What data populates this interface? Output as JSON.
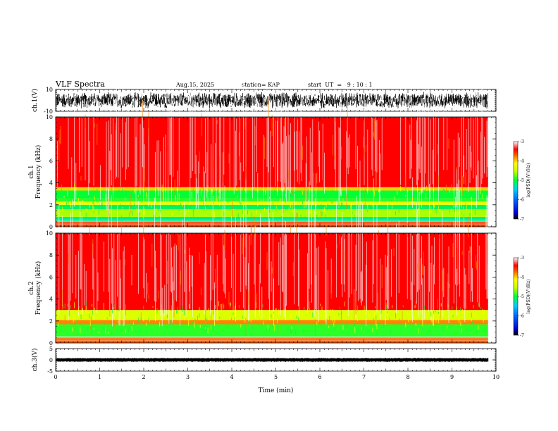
{
  "header": {
    "title": "VLF Spectra",
    "date": "Aug.15, 2025",
    "station": "station= KAP",
    "start_ut": "start  UT  =   9 : 10 : 1"
  },
  "chart_data": [
    {
      "type": "line",
      "name": "ch1-waveform",
      "ylabel": "ch.1(V)",
      "ylim": [
        -10,
        10
      ],
      "yticks": [
        {
          "v": 10,
          "label": "10"
        },
        {
          "v": -10,
          "label": "-10"
        }
      ],
      "xlim": [
        0,
        10
      ],
      "data_extent": [
        0,
        9.82
      ],
      "description": "dense noisy waveform, amplitude roughly between -8 and +8 V"
    },
    {
      "type": "heatmap",
      "name": "ch1-spectrogram",
      "ylabel_line1": "ch.1",
      "ylabel_line2": "Frequency (kHz)",
      "ylim": [
        0,
        10
      ],
      "yticks": [
        {
          "v": 0,
          "label": "0"
        },
        {
          "v": 2,
          "label": "2"
        },
        {
          "v": 4,
          "label": "4"
        },
        {
          "v": 6,
          "label": "6"
        },
        {
          "v": 8,
          "label": "8"
        },
        {
          "v": 10,
          "label": "10"
        }
      ],
      "xlim": [
        0,
        10
      ],
      "data_extent": [
        0,
        9.82
      ],
      "color_range": [
        -7,
        -3
      ],
      "bands": [
        {
          "from": 0.0,
          "to": 0.5,
          "level": -3.6
        },
        {
          "from": 0.5,
          "to": 0.9,
          "level": -5.2
        },
        {
          "from": 0.9,
          "to": 1.6,
          "level": -4.6
        },
        {
          "from": 1.6,
          "to": 2.0,
          "level": -5.1
        },
        {
          "from": 2.0,
          "to": 2.3,
          "level": -4.3
        },
        {
          "from": 2.3,
          "to": 2.6,
          "level": -4.9
        },
        {
          "from": 2.6,
          "to": 3.3,
          "level": -5.0
        },
        {
          "from": 3.3,
          "to": 3.6,
          "level": -4.0
        },
        {
          "from": 3.6,
          "to": 10.0,
          "level": -3.4
        }
      ],
      "colorbar": {
        "label": "log(PSD)(V²/Hz)",
        "ticks": [
          {
            "v": -3,
            "label": "-3"
          },
          {
            "v": -4,
            "label": "-4"
          },
          {
            "v": -5,
            "label": "-5"
          },
          {
            "v": -6,
            "label": "-6"
          },
          {
            "v": -7,
            "label": "-7"
          }
        ]
      }
    },
    {
      "type": "heatmap",
      "name": "ch2-spectrogram",
      "ylabel_line1": "ch.2",
      "ylabel_line2": "Frequency (kHz)",
      "ylim": [
        0,
        10
      ],
      "yticks": [
        {
          "v": 0,
          "label": "0"
        },
        {
          "v": 2,
          "label": "2"
        },
        {
          "v": 4,
          "label": "4"
        },
        {
          "v": 6,
          "label": "6"
        },
        {
          "v": 8,
          "label": "8"
        },
        {
          "v": 10,
          "label": "10"
        }
      ],
      "xlim": [
        0,
        10
      ],
      "data_extent": [
        0,
        9.82
      ],
      "color_range": [
        -7,
        -3
      ],
      "bands": [
        {
          "from": 0.0,
          "to": 0.5,
          "level": -3.7
        },
        {
          "from": 0.5,
          "to": 1.7,
          "level": -4.9
        },
        {
          "from": 1.7,
          "to": 2.1,
          "level": -3.8
        },
        {
          "from": 2.1,
          "to": 3.0,
          "level": -4.4
        },
        {
          "from": 3.0,
          "to": 10.0,
          "level": -3.4
        }
      ],
      "colorbar": {
        "label": "log(PSD)(V²/Hz)",
        "ticks": [
          {
            "v": -3,
            "label": "-3"
          },
          {
            "v": -4,
            "label": "-4"
          },
          {
            "v": -5,
            "label": "-5"
          },
          {
            "v": -6,
            "label": "-6"
          },
          {
            "v": -7,
            "label": "-7"
          }
        ]
      }
    },
    {
      "type": "line",
      "name": "ch3-waveform",
      "ylabel": "ch.3(V)",
      "ylim": [
        -5,
        5
      ],
      "yticks": [
        {
          "v": 5,
          "label": "5"
        },
        {
          "v": 0,
          "label": "0"
        },
        {
          "v": -5,
          "label": "-5"
        }
      ],
      "xlim": [
        0,
        10
      ],
      "data_extent": [
        0,
        9.82
      ],
      "xlabel": "Time (min)",
      "xticks": [
        {
          "v": 0,
          "label": "0"
        },
        {
          "v": 1,
          "label": "1"
        },
        {
          "v": 2,
          "label": "2"
        },
        {
          "v": 3,
          "label": "3"
        },
        {
          "v": 4,
          "label": "4"
        },
        {
          "v": 5,
          "label": "5"
        },
        {
          "v": 6,
          "label": "6"
        },
        {
          "v": 7,
          "label": "7"
        },
        {
          "v": 8,
          "label": "8"
        },
        {
          "v": 9,
          "label": "9"
        },
        {
          "v": 10,
          "label": "10"
        }
      ],
      "description": "thick flat trace near 0 V with amplitude about 0.6 V"
    }
  ]
}
